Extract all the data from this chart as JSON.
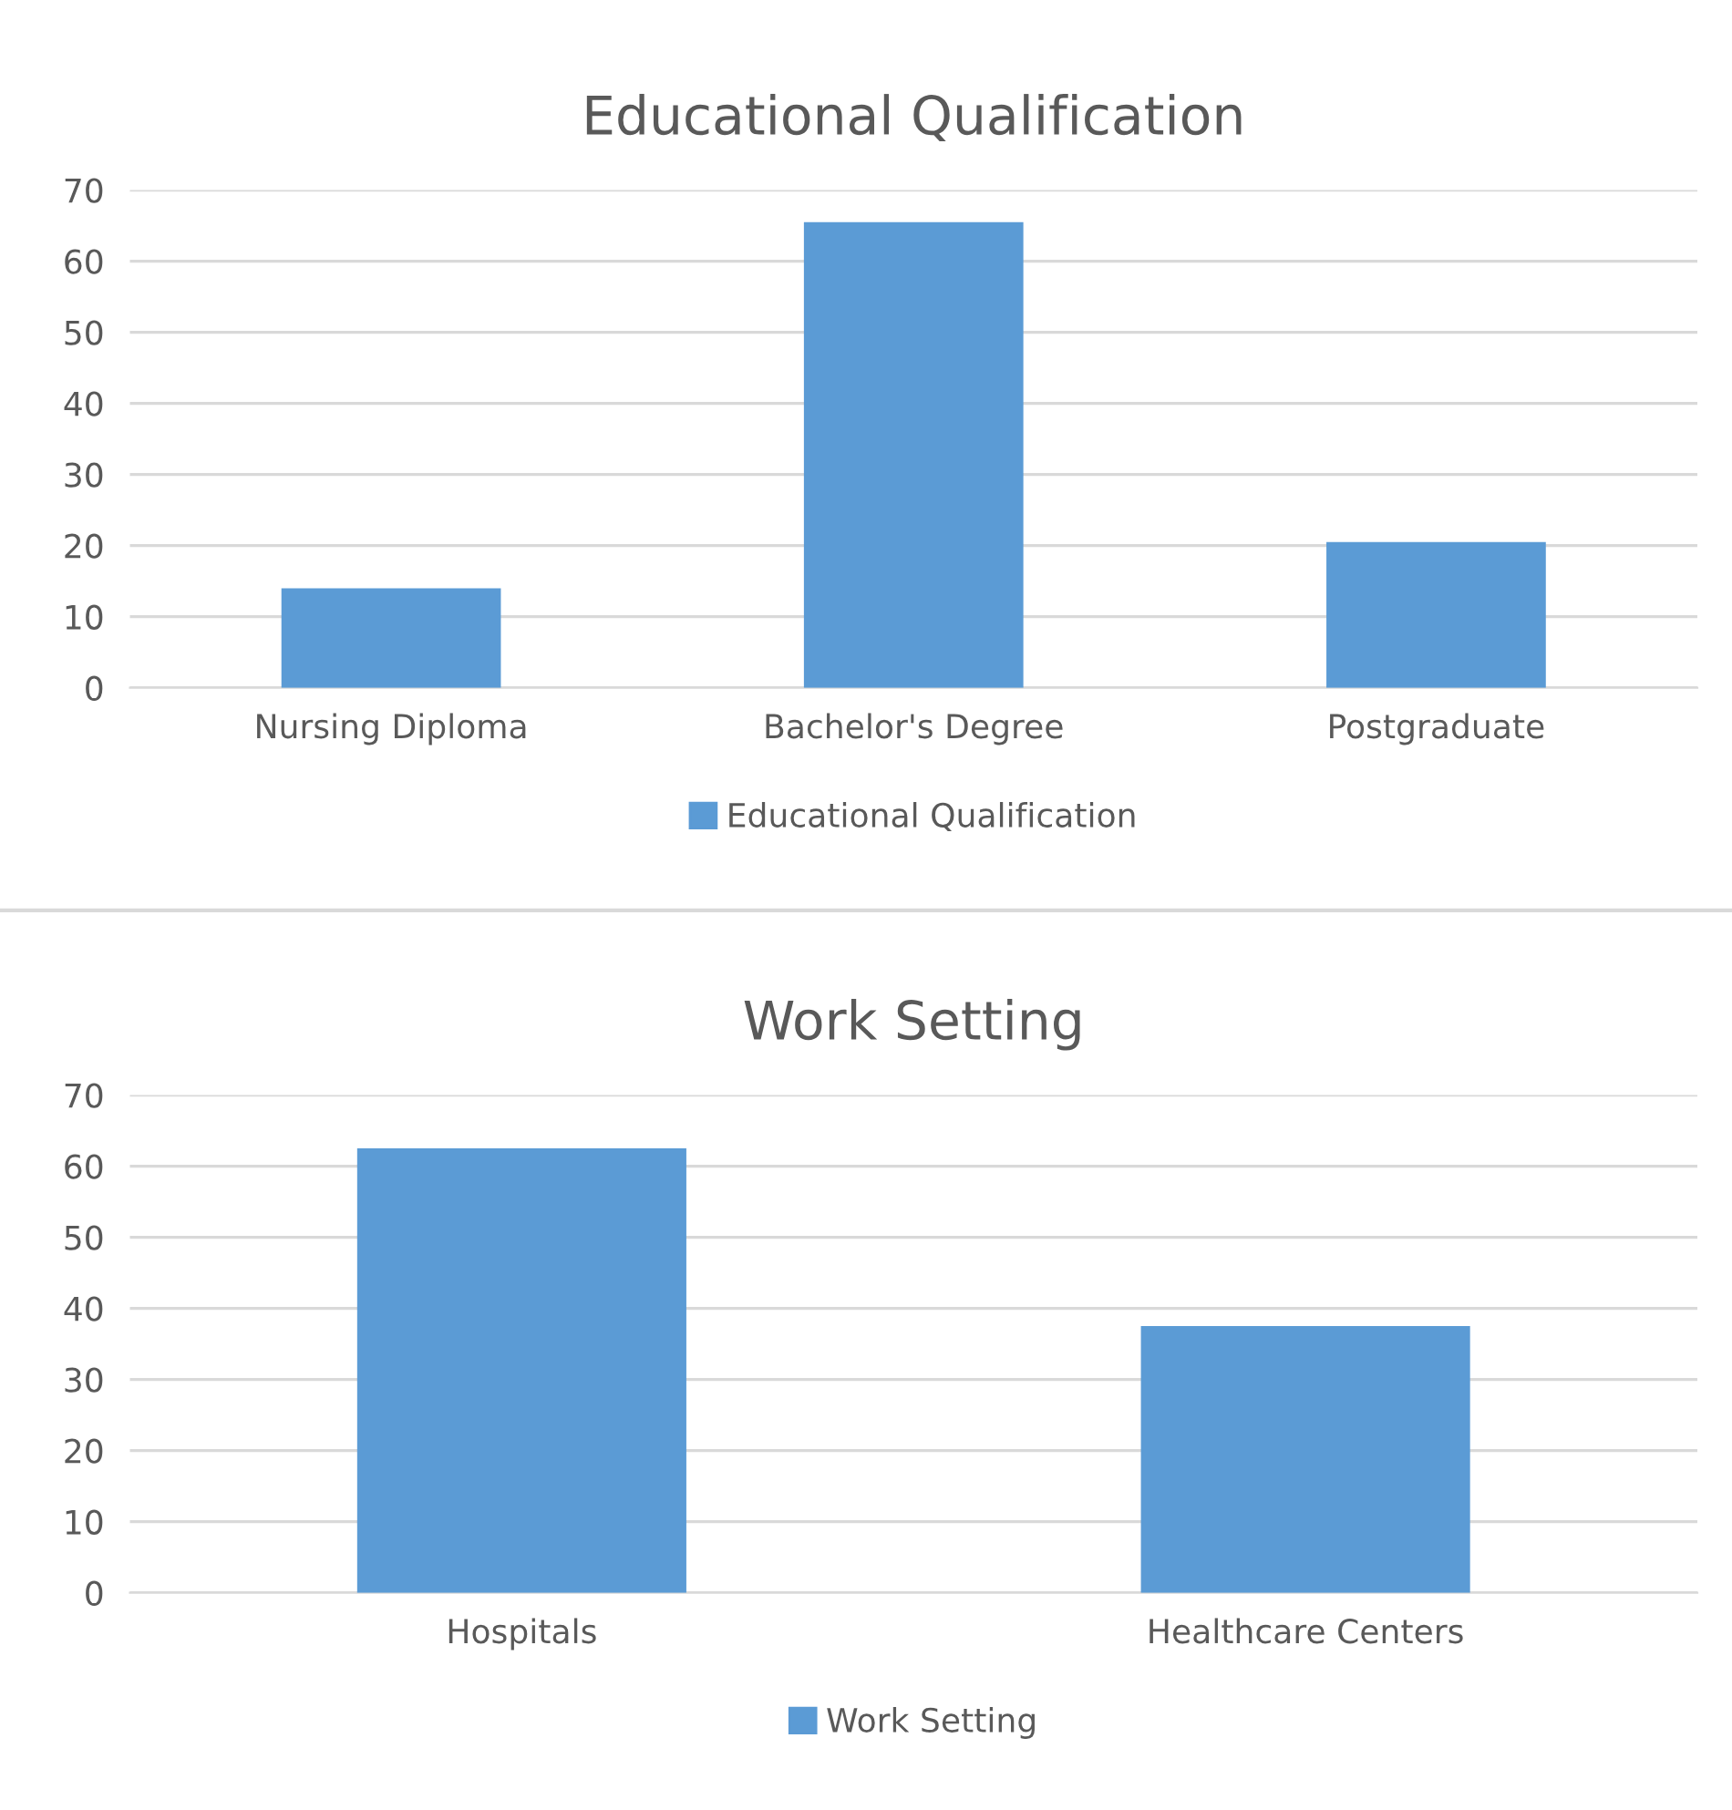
{
  "chart_data": [
    {
      "type": "bar",
      "title": "Educational Qualification",
      "categories": [
        "Nursing Diploma",
        "Bachelor's Degree",
        "Postgraduate"
      ],
      "series": [
        {
          "name": "Educational Qualification",
          "color": "#5b9bd5",
          "values": [
            14,
            65.5,
            20.5
          ]
        }
      ],
      "ylim": [
        0,
        70
      ],
      "yticks": [
        0,
        10,
        20,
        30,
        40,
        50,
        60,
        70
      ],
      "grid": "y",
      "legend": "bottom"
    },
    {
      "type": "bar",
      "title": "Work Setting",
      "categories": [
        "Hospitals",
        "Healthcare Centers"
      ],
      "series": [
        {
          "name": "Work Setting",
          "color": "#5b9bd5",
          "values": [
            62.5,
            37.5
          ]
        }
      ],
      "ylim": [
        0,
        70
      ],
      "yticks": [
        0,
        10,
        20,
        30,
        40,
        50,
        60,
        70
      ],
      "grid": "y",
      "legend": "bottom"
    }
  ]
}
